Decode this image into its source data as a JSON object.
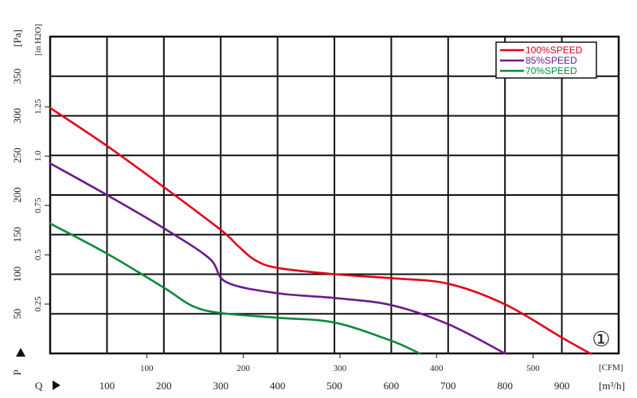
{
  "chart_data": {
    "type": "line",
    "title": "",
    "x_primary": {
      "symbol": "Q",
      "unit": "[m³/h]",
      "range": [
        0,
        1000
      ],
      "ticks": [
        100,
        200,
        300,
        400,
        500,
        600,
        700,
        800,
        900
      ]
    },
    "x_secondary": {
      "unit": "[CFM]",
      "ticks": [
        100,
        200,
        300,
        400,
        500
      ]
    },
    "y_primary": {
      "symbol": "P",
      "unit": "[Pa]",
      "range": [
        0,
        400
      ],
      "ticks": [
        50,
        100,
        150,
        200,
        250,
        300,
        350
      ]
    },
    "y_secondary": {
      "unit": "[in H2O]",
      "tick_labels": [
        "0.25",
        "0.5",
        "0.75",
        "1.0",
        "1.25"
      ],
      "tick_values_pa": [
        62.3,
        124.5,
        186.8,
        249.1,
        311.4
      ]
    },
    "grid": true,
    "legend_position": "top-right",
    "annotation": "①",
    "series": [
      {
        "name": "100%SPEED",
        "color": "#e2001a",
        "points": [
          [
            0,
            310
          ],
          [
            100,
            262
          ],
          [
            200,
            210
          ],
          [
            300,
            156
          ],
          [
            330,
            136
          ],
          [
            360,
            118
          ],
          [
            400,
            108
          ],
          [
            500,
            100
          ],
          [
            600,
            95
          ],
          [
            700,
            88
          ],
          [
            800,
            62
          ],
          [
            900,
            20
          ],
          [
            950,
            0
          ]
        ]
      },
      {
        "name": "85%SPEED",
        "color": "#6a1b8a",
        "points": [
          [
            0,
            240
          ],
          [
            100,
            200
          ],
          [
            200,
            158
          ],
          [
            280,
            120
          ],
          [
            310,
            90
          ],
          [
            400,
            76
          ],
          [
            500,
            70
          ],
          [
            600,
            61
          ],
          [
            700,
            37
          ],
          [
            800,
            0
          ]
        ]
      },
      {
        "name": "70%SPEED",
        "color": "#0a8a3a",
        "points": [
          [
            0,
            164
          ],
          [
            100,
            126
          ],
          [
            200,
            83
          ],
          [
            250,
            60
          ],
          [
            300,
            51
          ],
          [
            400,
            45
          ],
          [
            500,
            39
          ],
          [
            600,
            16
          ],
          [
            650,
            0
          ]
        ]
      }
    ]
  }
}
